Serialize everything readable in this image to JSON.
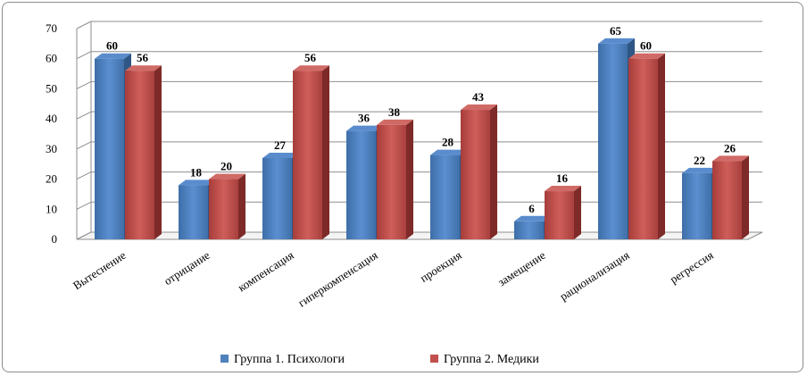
{
  "chart_data": {
    "type": "bar",
    "categories": [
      "Вытеснение",
      "отрицание",
      "компенсация",
      "гиперкомпенсация",
      "проекция",
      "замещение",
      "рационализация",
      "регрессия"
    ],
    "series": [
      {
        "name": "Группа 1. Психологи",
        "values": [
          60,
          18,
          27,
          36,
          28,
          6,
          65,
          22
        ],
        "color": "#4f81bd"
      },
      {
        "name": "Группа 2. Медики",
        "values": [
          56,
          20,
          56,
          38,
          43,
          16,
          60,
          26
        ],
        "color": "#c0504d"
      }
    ],
    "yticks": [
      0,
      10,
      20,
      30,
      40,
      50,
      60,
      70
    ],
    "ylim": [
      0,
      70
    ],
    "grid": true,
    "legend_position": "bottom",
    "three_d": true
  }
}
